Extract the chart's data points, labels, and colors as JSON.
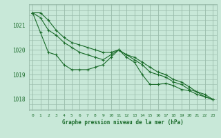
{
  "xlabel": "Graphe pression niveau de la mer (hPa)",
  "hours": [
    0,
    1,
    2,
    3,
    4,
    5,
    6,
    7,
    8,
    9,
    10,
    11,
    12,
    13,
    14,
    15,
    16,
    17,
    18,
    19,
    20,
    21,
    22,
    23
  ],
  "line_top": [
    1021.5,
    1021.5,
    1021.2,
    1020.8,
    1020.5,
    1020.3,
    1020.2,
    1020.1,
    1020.0,
    1019.9,
    1019.9,
    1020.0,
    1019.8,
    1019.7,
    1019.5,
    1019.3,
    1019.1,
    1019.0,
    1018.8,
    1018.7,
    1018.5,
    1018.3,
    1018.2,
    1018.0
  ],
  "line_mid": [
    1021.5,
    1021.3,
    1020.8,
    1020.6,
    1020.3,
    1020.1,
    1019.9,
    1019.8,
    1019.7,
    1019.6,
    1019.8,
    1020.0,
    1019.8,
    1019.6,
    1019.4,
    1019.1,
    1019.0,
    1018.9,
    1018.7,
    1018.6,
    1018.4,
    1018.3,
    1018.1,
    1018.0
  ],
  "line_bot": [
    1021.5,
    1020.7,
    1019.9,
    1019.8,
    1019.4,
    1019.2,
    1019.2,
    1019.2,
    1019.3,
    1019.4,
    1019.7,
    1020.0,
    1019.7,
    1019.5,
    1019.0,
    1018.6,
    1018.6,
    1018.65,
    1018.55,
    1018.4,
    1018.35,
    1018.2,
    1018.1,
    1018.0
  ],
  "bg_color": "#c8e8d8",
  "grid_color": "#99bbaa",
  "line_color": "#1a6b2a",
  "ylim": [
    1017.55,
    1021.85
  ],
  "yticks": [
    1018,
    1019,
    1020,
    1021
  ],
  "text_color": "#1a6b2a"
}
